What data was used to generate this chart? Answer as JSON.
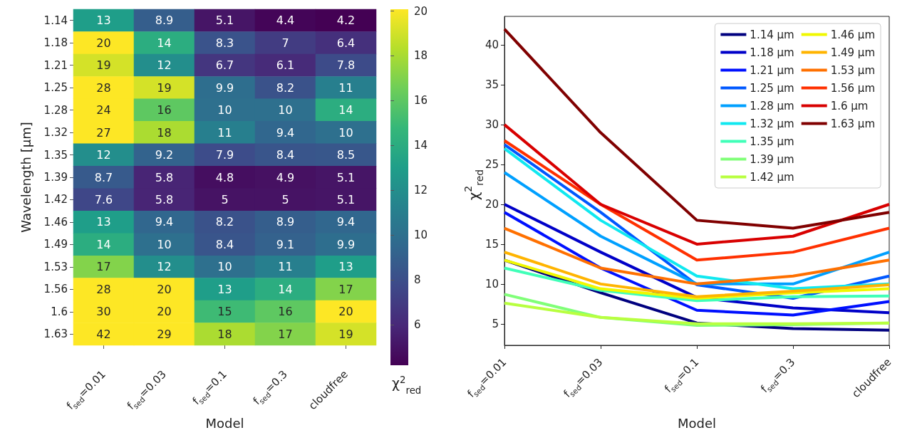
{
  "chart_data": [
    {
      "type": "heatmap",
      "xlabel": "Model",
      "ylabel": "Wavelength [μm]",
      "clabel": "χ$^{2}$$_{red}$",
      "categories": [
        "f$_{sed}$=0.01",
        "f$_{sed}$=0.03",
        "f$_{sed}$=0.1",
        "f$_{sed}$=0.3",
        "cloudfree"
      ],
      "y_categories": [
        "1.14",
        "1.18",
        "1.21",
        "1.25",
        "1.28",
        "1.32",
        "1.35",
        "1.39",
        "1.42",
        "1.46",
        "1.49",
        "1.53",
        "1.56",
        "1.6",
        "1.63"
      ],
      "cells": [
        [
          13,
          8.9,
          5.1,
          4.4,
          4.2
        ],
        [
          20,
          14,
          8.3,
          7,
          6.4
        ],
        [
          19,
          12,
          6.7,
          6.1,
          7.8
        ],
        [
          28,
          19,
          9.9,
          8.2,
          11
        ],
        [
          24,
          16,
          10,
          10,
          14
        ],
        [
          27,
          18,
          11,
          9.4,
          10
        ],
        [
          12,
          9.2,
          7.9,
          8.4,
          8.5
        ],
        [
          8.7,
          5.8,
          4.8,
          4.9,
          5.1
        ],
        [
          7.6,
          5.8,
          5,
          5,
          5.1
        ],
        [
          13,
          9.4,
          8.2,
          8.9,
          9.4
        ],
        [
          14,
          10,
          8.4,
          9.1,
          9.9
        ],
        [
          17,
          12,
          10,
          11,
          13
        ],
        [
          28,
          20,
          13,
          14,
          17
        ],
        [
          30,
          20,
          15,
          16,
          20
        ],
        [
          42,
          29,
          18,
          17,
          19
        ]
      ],
      "clim": [
        4.2,
        20
      ],
      "cticks": [
        6,
        8,
        10,
        12,
        14,
        16,
        18,
        20
      ],
      "data_labels": true
    },
    {
      "type": "line",
      "xlabel": "Model",
      "ylabel": "χ$^{2}$$_{red}$",
      "categories": [
        "f$_{sed}$=0.01",
        "f$_{sed}$=0.03",
        "f$_{sed}$=0.1",
        "f$_{sed}$=0.3",
        "cloudfree"
      ],
      "series": [
        {
          "name": "1.14 μm",
          "color": "#00007f",
          "values": [
            13,
            8.9,
            5.1,
            4.4,
            4.2
          ]
        },
        {
          "name": "1.18 μm",
          "color": "#0000c8",
          "values": [
            20,
            14,
            8.3,
            7,
            6.4
          ]
        },
        {
          "name": "1.21 μm",
          "color": "#0010ff",
          "values": [
            19,
            12,
            6.7,
            6.1,
            7.8
          ]
        },
        {
          "name": "1.25 μm",
          "color": "#0058ff",
          "values": [
            27.5,
            19,
            9.9,
            8.2,
            11
          ]
        },
        {
          "name": "1.28 μm",
          "color": "#00a0ff",
          "values": [
            24,
            16,
            10,
            10,
            14
          ]
        },
        {
          "name": "1.32 μm",
          "color": "#10e8f0",
          "values": [
            27,
            18,
            11,
            9.4,
            10
          ]
        },
        {
          "name": "1.35 μm",
          "color": "#40ffb8",
          "values": [
            12,
            9.2,
            7.9,
            8.4,
            8.5
          ]
        },
        {
          "name": "1.39 μm",
          "color": "#80ff78",
          "values": [
            8.7,
            5.8,
            4.8,
            4.9,
            5.1
          ]
        },
        {
          "name": "1.42 μm",
          "color": "#b8ff40",
          "values": [
            7.6,
            5.8,
            5,
            5,
            5.1
          ]
        },
        {
          "name": "1.46 μm",
          "color": "#f0f800",
          "values": [
            13,
            9.4,
            8.2,
            8.9,
            9.4
          ]
        },
        {
          "name": "1.49 μm",
          "color": "#ffb400",
          "values": [
            14,
            10,
            8.4,
            9.1,
            9.9
          ]
        },
        {
          "name": "1.53 μm",
          "color": "#ff7000",
          "values": [
            17,
            12,
            10,
            11,
            13
          ]
        },
        {
          "name": "1.56 μm",
          "color": "#ff3000",
          "values": [
            28,
            20,
            13,
            14,
            17
          ]
        },
        {
          "name": "1.6 μm",
          "color": "#d80000",
          "values": [
            30,
            20,
            15,
            16,
            20
          ]
        },
        {
          "name": "1.63 μm",
          "color": "#800000",
          "values": [
            42,
            29,
            18,
            17,
            19
          ]
        }
      ],
      "ylim": [
        2.3,
        43.6
      ],
      "yticks": [
        5,
        10,
        15,
        20,
        25,
        30,
        35,
        40
      ],
      "legend": "top right",
      "grid": false
    }
  ]
}
